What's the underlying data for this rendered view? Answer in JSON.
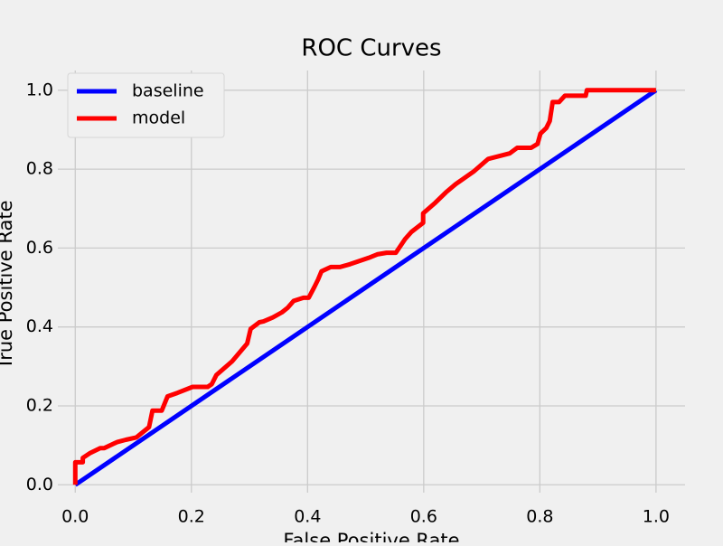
{
  "chart_data": {
    "type": "line",
    "title": "ROC Curves",
    "xlabel": "False Positive Rate",
    "ylabel": "True Positive Rate",
    "xlim": [
      -0.03,
      1.05
    ],
    "ylim": [
      -0.02,
      1.05
    ],
    "x_ticks": [
      0.0,
      0.2,
      0.4,
      0.6,
      0.8,
      1.0
    ],
    "x_tick_labels": [
      "0.0",
      "0.2",
      "0.4",
      "0.6",
      "0.8",
      "1.0"
    ],
    "y_ticks": [
      0.0,
      0.2,
      0.4,
      0.6,
      0.8,
      1.0
    ],
    "y_tick_labels": [
      "0.0",
      "0.2",
      "0.4",
      "0.6",
      "0.8",
      "1.0"
    ],
    "grid": true,
    "legend_position": "top-left",
    "series": [
      {
        "name": "baseline",
        "color": "#0000ff",
        "x": [
          0.0,
          1.0
        ],
        "y": [
          0.0,
          1.0
        ]
      },
      {
        "name": "model",
        "color": "#ff0000",
        "x": [
          0.0,
          0.0,
          0.013,
          0.013,
          0.025,
          0.043,
          0.05,
          0.072,
          0.087,
          0.105,
          0.127,
          0.133,
          0.149,
          0.159,
          0.176,
          0.202,
          0.228,
          0.235,
          0.243,
          0.27,
          0.296,
          0.302,
          0.317,
          0.324,
          0.34,
          0.356,
          0.366,
          0.376,
          0.393,
          0.402,
          0.412,
          0.418,
          0.424,
          0.44,
          0.456,
          0.473,
          0.505,
          0.52,
          0.536,
          0.552,
          0.568,
          0.579,
          0.599,
          0.599,
          0.62,
          0.638,
          0.655,
          0.687,
          0.711,
          0.748,
          0.761,
          0.785,
          0.796,
          0.801,
          0.811,
          0.817,
          0.822,
          0.833,
          0.843,
          0.879,
          0.881,
          0.914,
          1.0
        ],
        "y": [
          0.0,
          0.057,
          0.057,
          0.068,
          0.08,
          0.093,
          0.093,
          0.108,
          0.114,
          0.12,
          0.146,
          0.188,
          0.188,
          0.224,
          0.233,
          0.248,
          0.248,
          0.255,
          0.278,
          0.313,
          0.358,
          0.395,
          0.412,
          0.414,
          0.424,
          0.437,
          0.449,
          0.466,
          0.474,
          0.474,
          0.502,
          0.52,
          0.541,
          0.552,
          0.552,
          0.559,
          0.575,
          0.584,
          0.588,
          0.588,
          0.623,
          0.641,
          0.664,
          0.688,
          0.715,
          0.741,
          0.762,
          0.795,
          0.826,
          0.84,
          0.854,
          0.854,
          0.864,
          0.89,
          0.904,
          0.922,
          0.97,
          0.97,
          0.986,
          0.986,
          1.0,
          1.0,
          1.0
        ]
      }
    ]
  }
}
